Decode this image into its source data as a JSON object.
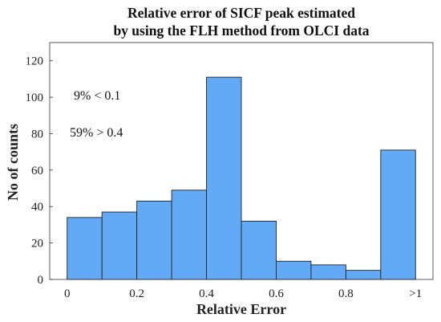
{
  "chart_data": {
    "type": "bar",
    "title_lines": [
      "Relative error of SICF peak estimated",
      "by using the FLH method from OLCI data"
    ],
    "xlabel": "Relative Error",
    "ylabel": "No of counts",
    "bin_edges": [
      0,
      0.1,
      0.2,
      0.3,
      0.4,
      0.5,
      0.6,
      0.7,
      0.8,
      0.9,
      1.0
    ],
    "values": [
      34,
      37,
      43,
      49,
      111,
      32,
      10,
      8,
      5,
      71
    ],
    "xlim": [
      -0.05,
      1.05
    ],
    "ylim": [
      0,
      130
    ],
    "x_ticks": [
      {
        "value": 0,
        "label": "0"
      },
      {
        "value": 0.2,
        "label": "0.2"
      },
      {
        "value": 0.4,
        "label": "0.4"
      },
      {
        "value": 0.6,
        "label": "0.6"
      },
      {
        "value": 0.8,
        "label": "0.8"
      },
      {
        "value": 1.0,
        "label": ">1"
      }
    ],
    "y_ticks": [
      0,
      20,
      40,
      60,
      80,
      100,
      120
    ],
    "annotations": [
      {
        "text": "9% < 0.1"
      },
      {
        "text": "59% > 0.4"
      }
    ],
    "bar_color": "#62aaf5",
    "edge_color": "#222222",
    "grid": false
  }
}
